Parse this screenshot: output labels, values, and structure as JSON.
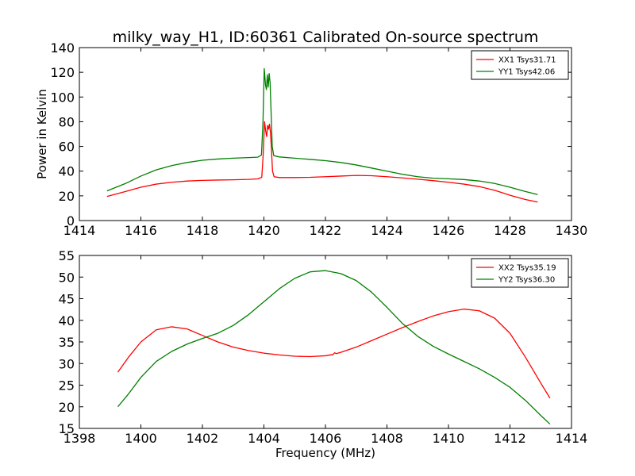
{
  "figure": {
    "title": "milky_way_H1, ID:60361 Calibrated On-source spectrum"
  },
  "chart_data": [
    {
      "type": "line",
      "title": "milky_way_H1, ID:60361 Calibrated On-source spectrum",
      "xlabel": "",
      "ylabel": "Power in Kelvin",
      "xlim": [
        1414,
        1430
      ],
      "ylim": [
        0,
        140
      ],
      "xticks": [
        1414,
        1416,
        1418,
        1420,
        1422,
        1424,
        1426,
        1428,
        1430
      ],
      "yticks": [
        0,
        20,
        40,
        60,
        80,
        100,
        120,
        140
      ],
      "grid": false,
      "legend_position": "top-right",
      "series": [
        {
          "name": "XX1 Tsys31.71",
          "color": "#ff0000",
          "points": [
            [
              1414.9,
              19.5
            ],
            [
              1415.5,
              23.5
            ],
            [
              1416.0,
              27.0
            ],
            [
              1416.5,
              29.5
            ],
            [
              1417.0,
              31.0
            ],
            [
              1417.5,
              32.0
            ],
            [
              1418.0,
              32.5
            ],
            [
              1418.5,
              32.8
            ],
            [
              1419.0,
              33.0
            ],
            [
              1419.5,
              33.3
            ],
            [
              1419.8,
              33.7
            ],
            [
              1419.93,
              35.0
            ],
            [
              1419.98,
              55.0
            ],
            [
              1420.02,
              80.0
            ],
            [
              1420.06,
              72.0
            ],
            [
              1420.09,
              68.0
            ],
            [
              1420.12,
              77.0
            ],
            [
              1420.15,
              74.0
            ],
            [
              1420.18,
              78.0
            ],
            [
              1420.21,
              72.0
            ],
            [
              1420.24,
              60.0
            ],
            [
              1420.28,
              40.0
            ],
            [
              1420.33,
              35.5
            ],
            [
              1420.5,
              34.8
            ],
            [
              1421.0,
              34.8
            ],
            [
              1421.5,
              35.0
            ],
            [
              1422.0,
              35.5
            ],
            [
              1422.5,
              36.0
            ],
            [
              1423.0,
              36.5
            ],
            [
              1423.5,
              36.3
            ],
            [
              1424.0,
              35.5
            ],
            [
              1424.5,
              34.5
            ],
            [
              1425.0,
              33.5
            ],
            [
              1425.5,
              32.3
            ],
            [
              1426.0,
              31.0
            ],
            [
              1426.5,
              29.5
            ],
            [
              1427.0,
              27.5
            ],
            [
              1427.5,
              24.5
            ],
            [
              1428.0,
              20.5
            ],
            [
              1428.5,
              17.0
            ],
            [
              1428.9,
              15.0
            ]
          ]
        },
        {
          "name": "YY1 Tsys42.06",
          "color": "#008000",
          "points": [
            [
              1414.9,
              24.0
            ],
            [
              1415.5,
              30.0
            ],
            [
              1416.0,
              36.0
            ],
            [
              1416.5,
              41.0
            ],
            [
              1417.0,
              44.5
            ],
            [
              1417.5,
              47.0
            ],
            [
              1418.0,
              48.8
            ],
            [
              1418.5,
              49.8
            ],
            [
              1419.0,
              50.5
            ],
            [
              1419.5,
              51.0
            ],
            [
              1419.8,
              51.3
            ],
            [
              1419.92,
              53.0
            ],
            [
              1419.97,
              80.0
            ],
            [
              1420.01,
              123.0
            ],
            [
              1420.05,
              110.0
            ],
            [
              1420.08,
              106.0
            ],
            [
              1420.11,
              118.0
            ],
            [
              1420.14,
              108.0
            ],
            [
              1420.17,
              119.0
            ],
            [
              1420.2,
              112.0
            ],
            [
              1420.23,
              90.0
            ],
            [
              1420.27,
              60.0
            ],
            [
              1420.32,
              52.5
            ],
            [
              1420.5,
              51.5
            ],
            [
              1421.0,
              50.5
            ],
            [
              1421.5,
              49.5
            ],
            [
              1422.0,
              48.5
            ],
            [
              1422.5,
              47.0
            ],
            [
              1423.0,
              45.0
            ],
            [
              1423.5,
              42.5
            ],
            [
              1424.0,
              40.0
            ],
            [
              1424.5,
              37.5
            ],
            [
              1425.0,
              35.5
            ],
            [
              1425.5,
              34.3
            ],
            [
              1426.0,
              33.8
            ],
            [
              1426.5,
              33.2
            ],
            [
              1427.0,
              32.0
            ],
            [
              1427.5,
              30.0
            ],
            [
              1428.0,
              27.0
            ],
            [
              1428.5,
              23.5
            ],
            [
              1428.9,
              21.0
            ]
          ]
        }
      ]
    },
    {
      "type": "line",
      "title": "",
      "xlabel": "Frequency (MHz)",
      "ylabel": "",
      "xlim": [
        1398,
        1414
      ],
      "ylim": [
        15,
        55
      ],
      "xticks": [
        1398,
        1400,
        1402,
        1404,
        1406,
        1408,
        1410,
        1412,
        1414
      ],
      "yticks": [
        15,
        20,
        25,
        30,
        35,
        40,
        45,
        50,
        55
      ],
      "grid": false,
      "legend_position": "top-right",
      "series": [
        {
          "name": "XX2 Tsys35.19",
          "color": "#ff0000",
          "points": [
            [
              1399.25,
              28.0
            ],
            [
              1399.6,
              31.5
            ],
            [
              1400.0,
              35.0
            ],
            [
              1400.5,
              37.8
            ],
            [
              1401.0,
              38.5
            ],
            [
              1401.5,
              38.0
            ],
            [
              1402.0,
              36.5
            ],
            [
              1402.5,
              35.0
            ],
            [
              1403.0,
              33.8
            ],
            [
              1403.5,
              33.0
            ],
            [
              1404.0,
              32.4
            ],
            [
              1404.5,
              32.0
            ],
            [
              1405.0,
              31.7
            ],
            [
              1405.5,
              31.6
            ],
            [
              1406.0,
              31.8
            ],
            [
              1406.25,
              32.1
            ],
            [
              1406.3,
              32.5
            ],
            [
              1406.35,
              32.3
            ],
            [
              1406.5,
              32.6
            ],
            [
              1407.0,
              33.8
            ],
            [
              1407.5,
              35.3
            ],
            [
              1408.0,
              36.8
            ],
            [
              1408.5,
              38.3
            ],
            [
              1409.0,
              39.7
            ],
            [
              1409.5,
              41.0
            ],
            [
              1410.0,
              42.0
            ],
            [
              1410.5,
              42.6
            ],
            [
              1411.0,
              42.2
            ],
            [
              1411.5,
              40.5
            ],
            [
              1412.0,
              37.0
            ],
            [
              1412.5,
              31.5
            ],
            [
              1413.0,
              25.5
            ],
            [
              1413.3,
              22.0
            ]
          ]
        },
        {
          "name": "YY2 Tsys36.30",
          "color": "#008000",
          "points": [
            [
              1399.25,
              20.0
            ],
            [
              1399.6,
              23.0
            ],
            [
              1400.0,
              26.8
            ],
            [
              1400.5,
              30.5
            ],
            [
              1401.0,
              32.8
            ],
            [
              1401.5,
              34.5
            ],
            [
              1402.0,
              35.8
            ],
            [
              1402.5,
              37.0
            ],
            [
              1403.0,
              38.8
            ],
            [
              1403.5,
              41.3
            ],
            [
              1404.0,
              44.3
            ],
            [
              1404.5,
              47.3
            ],
            [
              1405.0,
              49.7
            ],
            [
              1405.5,
              51.2
            ],
            [
              1406.0,
              51.5
            ],
            [
              1406.5,
              50.8
            ],
            [
              1407.0,
              49.2
            ],
            [
              1407.5,
              46.5
            ],
            [
              1408.0,
              43.0
            ],
            [
              1408.5,
              39.3
            ],
            [
              1409.0,
              36.3
            ],
            [
              1409.5,
              34.0
            ],
            [
              1410.0,
              32.2
            ],
            [
              1410.5,
              30.5
            ],
            [
              1411.0,
              28.8
            ],
            [
              1411.5,
              26.8
            ],
            [
              1412.0,
              24.5
            ],
            [
              1412.5,
              21.5
            ],
            [
              1413.0,
              18.0
            ],
            [
              1413.3,
              16.0
            ]
          ]
        }
      ]
    }
  ]
}
